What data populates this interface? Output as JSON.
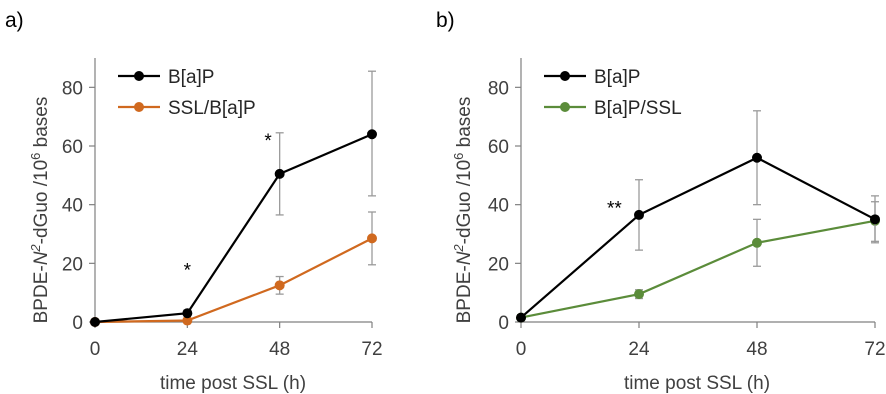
{
  "chart_data": [
    {
      "panel_label": "a)",
      "type": "line",
      "xlabel": "time post SSL (h)",
      "ylabel_prefix": "BPDE-",
      "ylabel_italic": "N",
      "ylabel_sup1": "2",
      "ylabel_mid": "-dGuo /10",
      "ylabel_sup2": "6",
      "ylabel_suffix": " bases",
      "ylim": [
        0,
        90
      ],
      "xlim": [
        0,
        72
      ],
      "xticks": [
        0,
        24,
        48,
        72
      ],
      "yticks": [
        0,
        20,
        40,
        60,
        80
      ],
      "grid": false,
      "legend_position": "top-left",
      "series": [
        {
          "name": "B[a]P",
          "color": "#000000",
          "x": [
            0,
            24,
            48,
            72
          ],
          "values": [
            0,
            3,
            50.5,
            64
          ],
          "err_low": [
            0,
            0,
            14,
            21
          ],
          "err_high": [
            0,
            0,
            14,
            21.5
          ]
        },
        {
          "name": "SSL/B[a]P",
          "color": "#D0691F",
          "x": [
            0,
            24,
            48,
            72
          ],
          "values": [
            0,
            0.5,
            12.5,
            28.5
          ],
          "err_low": [
            0,
            0,
            3,
            9
          ],
          "err_high": [
            0,
            0,
            3,
            9
          ]
        }
      ],
      "annotations": [
        {
          "text": "*",
          "x": 24,
          "y": 19
        },
        {
          "text": "*",
          "x": 45,
          "y": 63
        }
      ]
    },
    {
      "panel_label": "b)",
      "type": "line",
      "xlabel": "time post SSL (h)",
      "ylabel_prefix": "BPDE-",
      "ylabel_italic": "N",
      "ylabel_sup1": "2",
      "ylabel_mid": "-dGuo /10",
      "ylabel_sup2": "6",
      "ylabel_suffix": " bases",
      "ylim": [
        0,
        90
      ],
      "xlim": [
        0,
        72
      ],
      "xticks": [
        0,
        24,
        48,
        72
      ],
      "yticks": [
        0,
        20,
        40,
        60,
        80
      ],
      "grid": false,
      "legend_position": "top-left",
      "series": [
        {
          "name": "B[a]P",
          "color": "#000000",
          "x": [
            0,
            24,
            48,
            72
          ],
          "values": [
            1.5,
            36.5,
            56,
            35
          ],
          "err_low": [
            0,
            12,
            16,
            8
          ],
          "err_high": [
            0,
            12,
            16,
            8
          ]
        },
        {
          "name": "B[a]P/SSL",
          "color": "#5B8C3A",
          "x": [
            0,
            24,
            48,
            72
          ],
          "values": [
            1.5,
            9.5,
            27,
            34.5
          ],
          "err_low": [
            0,
            1.5,
            8,
            7
          ],
          "err_high": [
            0,
            1.5,
            8,
            6.5
          ]
        }
      ],
      "annotations": [
        {
          "text": "**",
          "x": 19,
          "y": 40
        }
      ]
    }
  ]
}
